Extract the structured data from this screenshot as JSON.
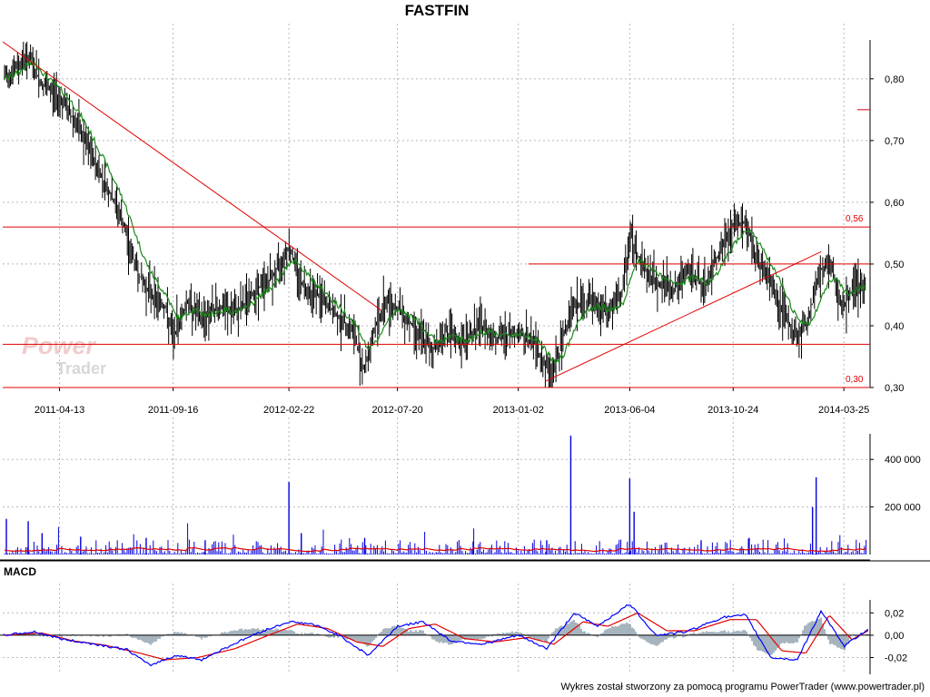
{
  "title": "FASTFIN",
  "footer": "Wykres został stworzony za pomocą programu PowerTrader (www.powertrader.pl)",
  "logo": {
    "top": "Power",
    "bottom": "Trader"
  },
  "colors": {
    "price": "#000000",
    "ma": "#1a8a1a",
    "trend": "#e00000",
    "volume": "#0000dd",
    "volume_ma": "#e00000",
    "macd": "#0000ff",
    "signal": "#e00000",
    "histogram": "#8fa1ad",
    "grid": "#b8b8b8",
    "level_label": "#e00000"
  },
  "chart_data": [
    {
      "type": "line",
      "panel": "price",
      "title": "FASTFIN",
      "x_tick_labels": [
        "2011-04-13",
        "2011-09-16",
        "2012-02-22",
        "2012-07-20",
        "2013-01-02",
        "2013-06-04",
        "2013-10-24",
        "2014-03-25"
      ],
      "y_tick_labels": [
        "0,80",
        "0,70",
        "0,60",
        "0,50",
        "0,40",
        "0,30"
      ],
      "y_ticks": [
        0.8,
        0.7,
        0.6,
        0.5,
        0.4,
        0.3
      ],
      "ylim": [
        0.3,
        0.86
      ],
      "xlim": [
        "2011-01-25",
        "2014-04-30"
      ],
      "grid": true,
      "series": [
        {
          "values": [
            {
              "x": "2011-01-25",
              "y": 0.8
            },
            {
              "x": "2011-02-15",
              "y": 0.82
            },
            {
              "x": "2011-02-28",
              "y": 0.84
            },
            {
              "x": "2011-03-20",
              "y": 0.79
            },
            {
              "x": "2011-04-13",
              "y": 0.77
            },
            {
              "x": "2011-05-05",
              "y": 0.73
            },
            {
              "x": "2011-05-25",
              "y": 0.68
            },
            {
              "x": "2011-06-15",
              "y": 0.63
            },
            {
              "x": "2011-07-05",
              "y": 0.58
            },
            {
              "x": "2011-07-20",
              "y": 0.52
            },
            {
              "x": "2011-08-05",
              "y": 0.47
            },
            {
              "x": "2011-08-20",
              "y": 0.45
            },
            {
              "x": "2011-09-05",
              "y": 0.43
            },
            {
              "x": "2011-09-16",
              "y": 0.38
            },
            {
              "x": "2011-10-05",
              "y": 0.44
            },
            {
              "x": "2011-10-25",
              "y": 0.41
            },
            {
              "x": "2011-11-15",
              "y": 0.43
            },
            {
              "x": "2011-12-10",
              "y": 0.42
            },
            {
              "x": "2012-01-10",
              "y": 0.46
            },
            {
              "x": "2012-02-01",
              "y": 0.48
            },
            {
              "x": "2012-02-22",
              "y": 0.53
            },
            {
              "x": "2012-03-10",
              "y": 0.47
            },
            {
              "x": "2012-04-01",
              "y": 0.45
            },
            {
              "x": "2012-04-25",
              "y": 0.42
            },
            {
              "x": "2012-05-20",
              "y": 0.39
            },
            {
              "x": "2012-06-05",
              "y": 0.33
            },
            {
              "x": "2012-06-20",
              "y": 0.4
            },
            {
              "x": "2012-07-05",
              "y": 0.44
            },
            {
              "x": "2012-07-20",
              "y": 0.43
            },
            {
              "x": "2012-08-10",
              "y": 0.4
            },
            {
              "x": "2012-09-05",
              "y": 0.36
            },
            {
              "x": "2012-09-25",
              "y": 0.39
            },
            {
              "x": "2012-10-15",
              "y": 0.37
            },
            {
              "x": "2012-11-10",
              "y": 0.4
            },
            {
              "x": "2012-12-05",
              "y": 0.38
            },
            {
              "x": "2013-01-02",
              "y": 0.39
            },
            {
              "x": "2013-01-25",
              "y": 0.37
            },
            {
              "x": "2013-02-15",
              "y": 0.32
            },
            {
              "x": "2013-03-01",
              "y": 0.36
            },
            {
              "x": "2013-03-15",
              "y": 0.43
            },
            {
              "x": "2013-04-10",
              "y": 0.44
            },
            {
              "x": "2013-05-05",
              "y": 0.42
            },
            {
              "x": "2013-05-25",
              "y": 0.45
            },
            {
              "x": "2013-06-04",
              "y": 0.55
            },
            {
              "x": "2013-06-20",
              "y": 0.5
            },
            {
              "x": "2013-07-10",
              "y": 0.47
            },
            {
              "x": "2013-08-05",
              "y": 0.46
            },
            {
              "x": "2013-08-25",
              "y": 0.49
            },
            {
              "x": "2013-09-15",
              "y": 0.46
            },
            {
              "x": "2013-10-05",
              "y": 0.52
            },
            {
              "x": "2013-10-24",
              "y": 0.56
            },
            {
              "x": "2013-11-10",
              "y": 0.57
            },
            {
              "x": "2013-11-25",
              "y": 0.51
            },
            {
              "x": "2013-12-15",
              "y": 0.47
            },
            {
              "x": "2014-01-05",
              "y": 0.41
            },
            {
              "x": "2014-01-20",
              "y": 0.38
            },
            {
              "x": "2014-02-05",
              "y": 0.41
            },
            {
              "x": "2014-02-20",
              "y": 0.49
            },
            {
              "x": "2014-03-05",
              "y": 0.5
            },
            {
              "x": "2014-03-25",
              "y": 0.43
            },
            {
              "x": "2014-04-10",
              "y": 0.47
            },
            {
              "x": "2014-04-25",
              "y": 0.46
            }
          ]
        }
      ],
      "levels": [
        {
          "value": 0.56,
          "label": "0,56"
        },
        {
          "value": 0.3,
          "label": "0,30"
        },
        {
          "value": 0.37,
          "label": ""
        },
        {
          "value": 0.5,
          "label": "",
          "from": "2013-01-16"
        }
      ],
      "trendlines": [
        {
          "from": {
            "x": "2011-01-25",
            "y": 0.86
          },
          "to": {
            "x": "2012-06-28",
            "y": 0.425
          }
        },
        {
          "from": {
            "x": "2013-02-08",
            "y": 0.31
          },
          "to": {
            "x": "2014-02-22",
            "y": 0.52
          }
        }
      ],
      "marker": {
        "value": 0.75
      }
    },
    {
      "type": "bar",
      "panel": "volume",
      "y_tick_labels": [
        "400 000",
        "200 000"
      ],
      "y_ticks": [
        400000,
        200000
      ],
      "ylim": [
        0,
        500000
      ],
      "spikes": [
        {
          "x": "2011-01-30",
          "y": 150000
        },
        {
          "x": "2011-03-01",
          "y": 140000
        },
        {
          "x": "2011-03-20",
          "y": 90000
        },
        {
          "x": "2011-05-12",
          "y": 75000
        },
        {
          "x": "2011-08-10",
          "y": 70000
        },
        {
          "x": "2011-10-30",
          "y": 60000
        },
        {
          "x": "2012-02-22",
          "y": 305000
        },
        {
          "x": "2012-03-10",
          "y": 90000
        },
        {
          "x": "2012-06-05",
          "y": 70000
        },
        {
          "x": "2012-11-01",
          "y": 55000
        },
        {
          "x": "2013-02-10",
          "y": 60000
        },
        {
          "x": "2013-03-15",
          "y": 500000
        },
        {
          "x": "2013-06-04",
          "y": 320000
        },
        {
          "x": "2013-06-10",
          "y": 180000
        },
        {
          "x": "2013-09-10",
          "y": 60000
        },
        {
          "x": "2013-11-15",
          "y": 70000
        },
        {
          "x": "2014-02-15",
          "y": 325000
        },
        {
          "x": "2014-02-10",
          "y": 200000
        }
      ]
    },
    {
      "type": "line",
      "panel": "macd",
      "title": "MACD",
      "y_tick_labels": [
        "0,02",
        "0,00",
        "-0,02"
      ],
      "y_ticks": [
        0.02,
        0.0,
        -0.02
      ],
      "ylim": [
        -0.035,
        0.03
      ],
      "series": [
        {
          "values": [
            {
              "x": "2011-01-25",
              "y": 0.0
            },
            {
              "x": "2011-03-10",
              "y": 0.003
            },
            {
              "x": "2011-04-20",
              "y": -0.004
            },
            {
              "x": "2011-06-01",
              "y": -0.008
            },
            {
              "x": "2011-07-15",
              "y": -0.013
            },
            {
              "x": "2011-08-15",
              "y": -0.027
            },
            {
              "x": "2011-09-20",
              "y": -0.018
            },
            {
              "x": "2011-10-25",
              "y": -0.022
            },
            {
              "x": "2011-12-01",
              "y": -0.01
            },
            {
              "x": "2012-01-10",
              "y": 0.002
            },
            {
              "x": "2012-02-22",
              "y": 0.012
            },
            {
              "x": "2012-03-25",
              "y": 0.01
            },
            {
              "x": "2012-05-01",
              "y": 0.0
            },
            {
              "x": "2012-06-10",
              "y": -0.018
            },
            {
              "x": "2012-07-20",
              "y": 0.008
            },
            {
              "x": "2012-08-25",
              "y": 0.012
            },
            {
              "x": "2012-10-01",
              "y": -0.005
            },
            {
              "x": "2012-11-15",
              "y": -0.008
            },
            {
              "x": "2013-01-02",
              "y": 0.0
            },
            {
              "x": "2013-02-10",
              "y": -0.012
            },
            {
              "x": "2013-03-20",
              "y": 0.02
            },
            {
              "x": "2013-04-20",
              "y": 0.008
            },
            {
              "x": "2013-06-04",
              "y": 0.028
            },
            {
              "x": "2013-07-10",
              "y": 0.0
            },
            {
              "x": "2013-08-20",
              "y": 0.003
            },
            {
              "x": "2013-10-10",
              "y": 0.016
            },
            {
              "x": "2013-11-10",
              "y": 0.018
            },
            {
              "x": "2013-12-15",
              "y": -0.02
            },
            {
              "x": "2014-01-20",
              "y": -0.022
            },
            {
              "x": "2014-02-22",
              "y": 0.022
            },
            {
              "x": "2014-03-25",
              "y": -0.01
            },
            {
              "x": "2014-04-30",
              "y": 0.007
            }
          ]
        },
        {
          "values": [
            {
              "x": "2011-01-25",
              "y": 0.0
            },
            {
              "x": "2011-03-20",
              "y": 0.002
            },
            {
              "x": "2011-05-01",
              "y": -0.005
            },
            {
              "x": "2011-06-15",
              "y": -0.009
            },
            {
              "x": "2011-08-01",
              "y": -0.016
            },
            {
              "x": "2011-09-05",
              "y": -0.022
            },
            {
              "x": "2011-10-20",
              "y": -0.02
            },
            {
              "x": "2011-12-10",
              "y": -0.012
            },
            {
              "x": "2012-01-25",
              "y": 0.0
            },
            {
              "x": "2012-03-05",
              "y": 0.01
            },
            {
              "x": "2012-04-15",
              "y": 0.006
            },
            {
              "x": "2012-05-25",
              "y": -0.006
            },
            {
              "x": "2012-06-30",
              "y": -0.01
            },
            {
              "x": "2012-08-05",
              "y": 0.006
            },
            {
              "x": "2012-09-10",
              "y": 0.01
            },
            {
              "x": "2012-10-20",
              "y": -0.003
            },
            {
              "x": "2012-12-01",
              "y": -0.006
            },
            {
              "x": "2013-01-15",
              "y": -0.002
            },
            {
              "x": "2013-02-20",
              "y": -0.008
            },
            {
              "x": "2013-04-01",
              "y": 0.012
            },
            {
              "x": "2013-05-05",
              "y": 0.008
            },
            {
              "x": "2013-06-15",
              "y": 0.02
            },
            {
              "x": "2013-07-25",
              "y": 0.004
            },
            {
              "x": "2013-09-01",
              "y": 0.004
            },
            {
              "x": "2013-10-20",
              "y": 0.014
            },
            {
              "x": "2013-11-25",
              "y": 0.014
            },
            {
              "x": "2013-12-30",
              "y": -0.014
            },
            {
              "x": "2014-02-01",
              "y": -0.016
            },
            {
              "x": "2014-03-05",
              "y": 0.018
            },
            {
              "x": "2014-04-05",
              "y": -0.004
            },
            {
              "x": "2014-04-30",
              "y": 0.005
            }
          ]
        }
      ]
    }
  ]
}
